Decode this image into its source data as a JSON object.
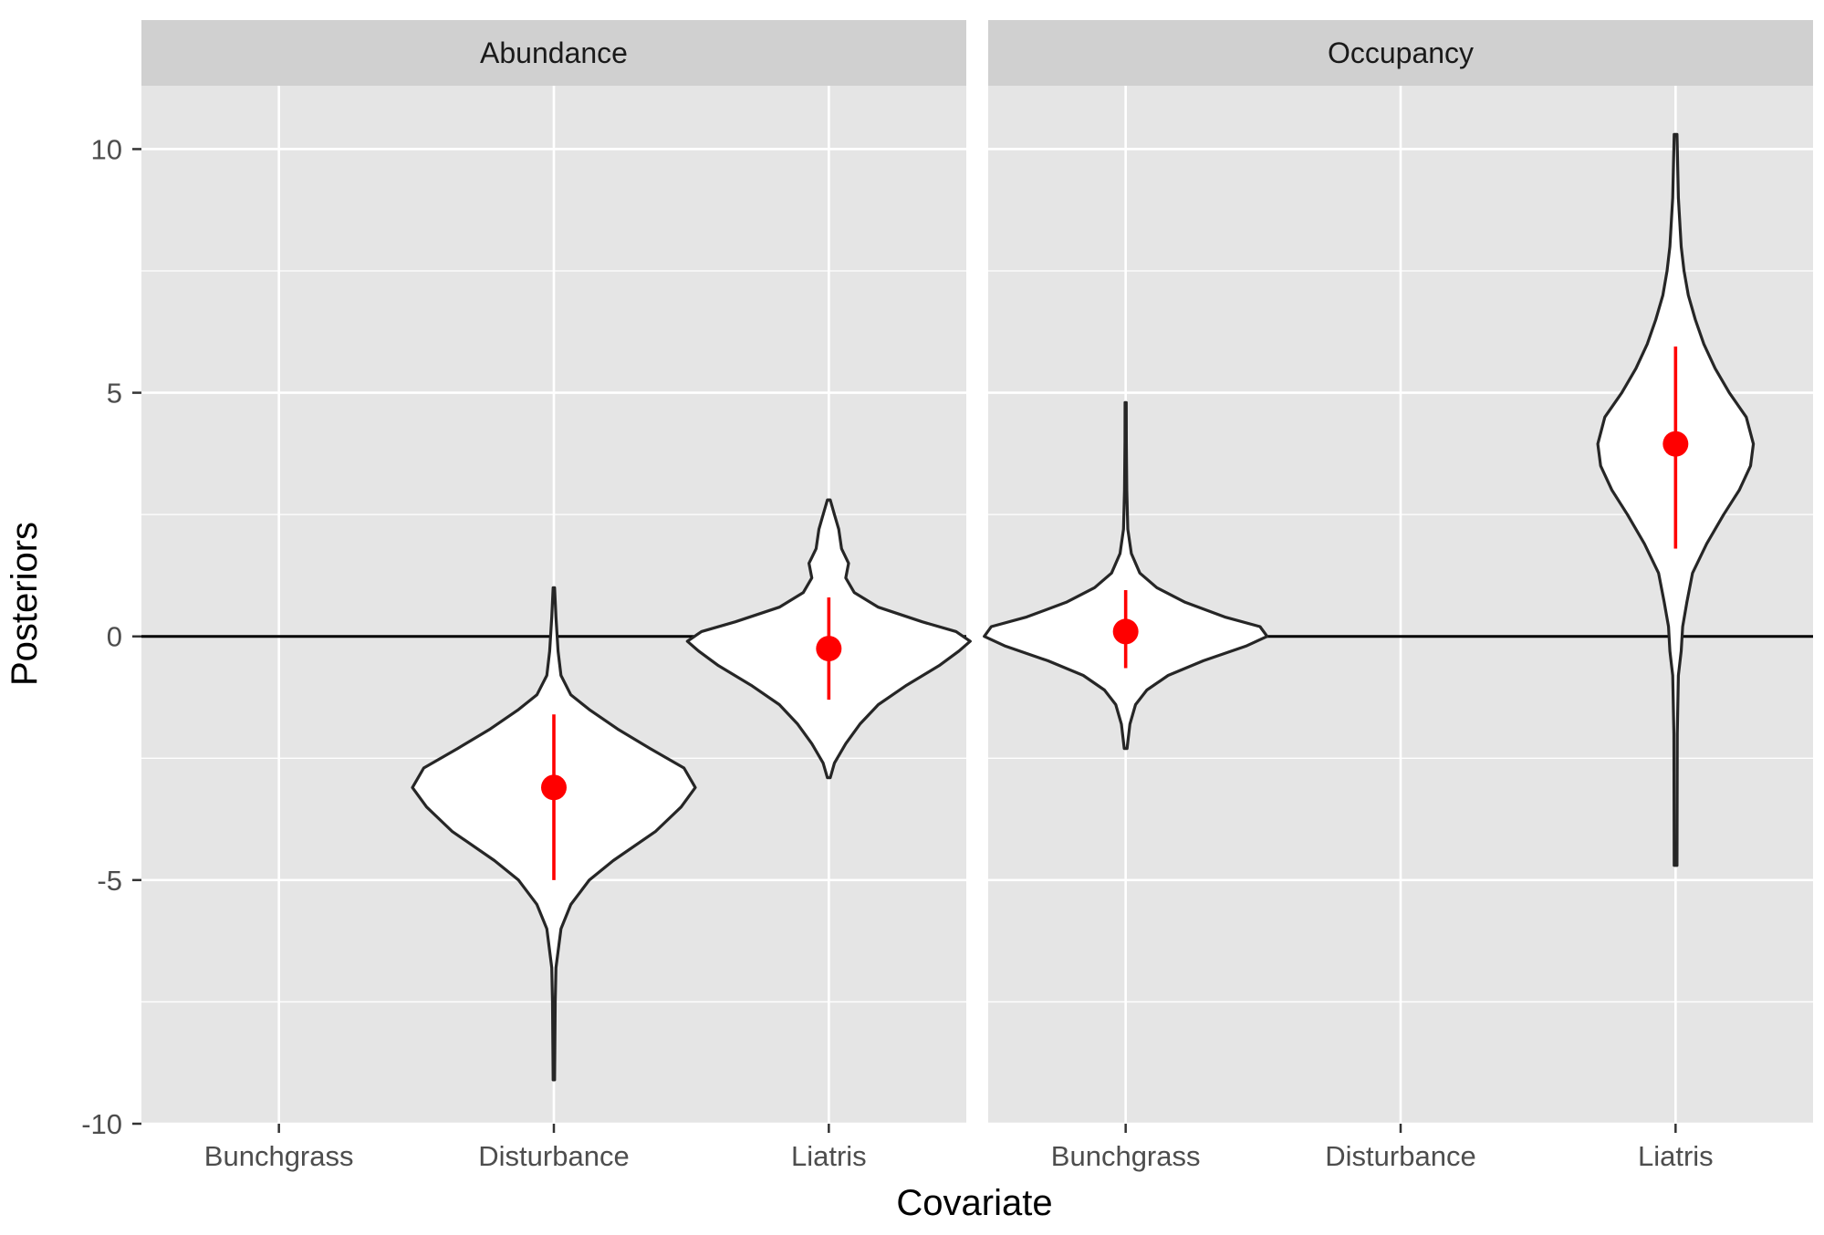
{
  "chart_data": {
    "type": "violin",
    "xlabel": "Covariate",
    "ylabel": "Posteriors",
    "ylim": [
      -10,
      11.3
    ],
    "yticks": [
      -10,
      -5,
      0,
      5,
      10
    ],
    "categories": [
      "Bunchgrass",
      "Disturbance",
      "Liatris"
    ],
    "reference_line_y": 0,
    "grid": true,
    "colors": {
      "panel_bg": "#e5e5e5",
      "strip_bg": "#d0d0d0",
      "grid": "#ffffff",
      "violin_fill": "#ffffff",
      "violin_outline": "#262626",
      "point": "#ff0000",
      "interval": "#ff0000",
      "ref_line": "#000000"
    },
    "panels": [
      {
        "title": "Abundance",
        "violins": [
          {
            "category": "Disturbance",
            "median": -3.1,
            "interval": [
              -5.0,
              -1.6
            ],
            "profile": [
              [
                -9.1,
                0.005
              ],
              [
                -7.5,
                0.01
              ],
              [
                -6.8,
                0.015
              ],
              [
                -6.0,
                0.05
              ],
              [
                -5.5,
                0.12
              ],
              [
                -5.0,
                0.25
              ],
              [
                -4.6,
                0.42
              ],
              [
                -4.0,
                0.72
              ],
              [
                -3.5,
                0.9
              ],
              [
                -3.1,
                1.0
              ],
              [
                -2.7,
                0.92
              ],
              [
                -2.3,
                0.68
              ],
              [
                -1.9,
                0.45
              ],
              [
                -1.5,
                0.25
              ],
              [
                -1.2,
                0.12
              ],
              [
                -0.8,
                0.05
              ],
              [
                -0.3,
                0.03
              ],
              [
                0.4,
                0.015
              ],
              [
                1.0,
                0.005
              ]
            ]
          },
          {
            "category": "Liatris",
            "median": -0.25,
            "interval": [
              -1.3,
              0.8
            ],
            "profile": [
              [
                -2.9,
                0.01
              ],
              [
                -2.6,
                0.04
              ],
              [
                -2.2,
                0.12
              ],
              [
                -1.8,
                0.22
              ],
              [
                -1.4,
                0.35
              ],
              [
                -1.0,
                0.55
              ],
              [
                -0.6,
                0.78
              ],
              [
                -0.3,
                0.92
              ],
              [
                -0.1,
                1.0
              ],
              [
                0.1,
                0.9
              ],
              [
                0.3,
                0.66
              ],
              [
                0.6,
                0.35
              ],
              [
                0.9,
                0.18
              ],
              [
                1.2,
                0.12
              ],
              [
                1.5,
                0.14
              ],
              [
                1.8,
                0.09
              ],
              [
                2.2,
                0.07
              ],
              [
                2.5,
                0.04
              ],
              [
                2.8,
                0.01
              ]
            ]
          }
        ]
      },
      {
        "title": "Occupancy",
        "violins": [
          {
            "category": "Bunchgrass",
            "median": 0.1,
            "interval": [
              -0.65,
              0.95
            ],
            "profile": [
              [
                -2.3,
                0.01
              ],
              [
                -1.8,
                0.03
              ],
              [
                -1.4,
                0.07
              ],
              [
                -1.1,
                0.15
              ],
              [
                -0.8,
                0.3
              ],
              [
                -0.5,
                0.55
              ],
              [
                -0.2,
                0.85
              ],
              [
                0.0,
                1.0
              ],
              [
                0.2,
                0.95
              ],
              [
                0.4,
                0.7
              ],
              [
                0.7,
                0.42
              ],
              [
                1.0,
                0.22
              ],
              [
                1.3,
                0.1
              ],
              [
                1.7,
                0.04
              ],
              [
                2.2,
                0.015
              ],
              [
                3.0,
                0.008
              ],
              [
                4.0,
                0.005
              ],
              [
                4.8,
                0.004
              ]
            ]
          },
          {
            "category": "Liatris",
            "median": 3.95,
            "interval": [
              1.8,
              5.95
            ],
            "profile": [
              [
                -4.7,
                0.01
              ],
              [
                -2.0,
                0.012
              ],
              [
                -0.8,
                0.02
              ],
              [
                -0.3,
                0.04
              ],
              [
                0.2,
                0.05
              ],
              [
                0.7,
                0.08
              ],
              [
                1.3,
                0.12
              ],
              [
                1.9,
                0.22
              ],
              [
                2.5,
                0.34
              ],
              [
                3.0,
                0.45
              ],
              [
                3.5,
                0.53
              ],
              [
                3.95,
                0.55
              ],
              [
                4.5,
                0.5
              ],
              [
                5.0,
                0.38
              ],
              [
                5.5,
                0.28
              ],
              [
                6.0,
                0.2
              ],
              [
                6.5,
                0.14
              ],
              [
                7.0,
                0.09
              ],
              [
                7.5,
                0.06
              ],
              [
                8.0,
                0.04
              ],
              [
                9.0,
                0.02
              ],
              [
                10.3,
                0.01
              ]
            ]
          }
        ]
      }
    ]
  }
}
